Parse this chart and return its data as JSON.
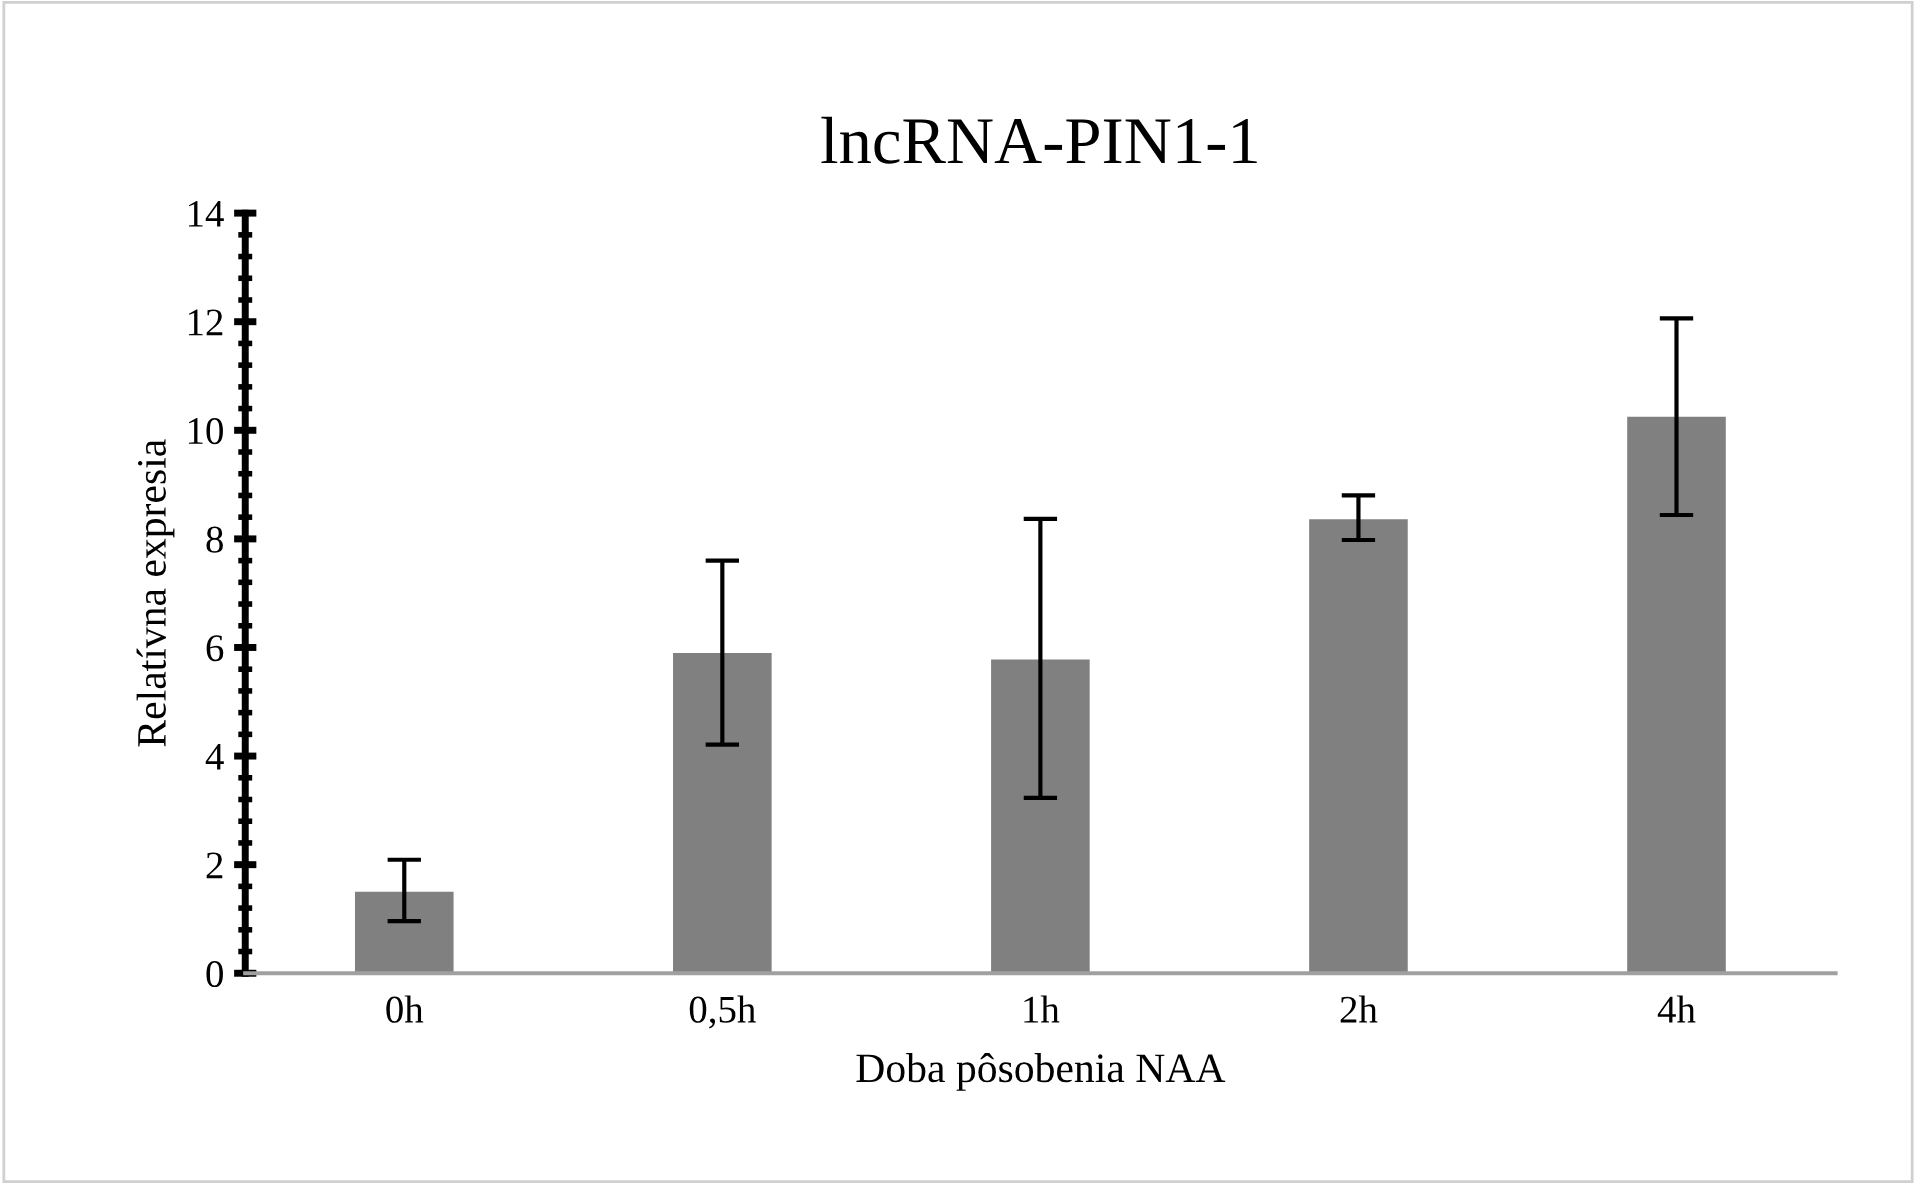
{
  "chart_data": {
    "type": "bar",
    "title": "lncRNA-PIN1-1",
    "xlabel": "Doba pôsobenia NAA",
    "ylabel": "Relatívna expresia",
    "categories": [
      "0h",
      "0,5h",
      "1h",
      "2h",
      "4h"
    ],
    "values": [
      1.5,
      5.9,
      5.78,
      8.36,
      10.25
    ],
    "errors": [
      [
        0.96,
        2.09
      ],
      [
        4.21,
        7.6
      ],
      [
        3.23,
        8.37
      ],
      [
        7.98,
        8.8
      ],
      [
        8.44,
        12.06
      ]
    ],
    "color": "#808080",
    "ylim": [
      0,
      14
    ],
    "yticks": [
      0,
      2,
      4,
      6,
      8,
      10,
      12,
      14
    ],
    "grid": false,
    "legend": false
  }
}
